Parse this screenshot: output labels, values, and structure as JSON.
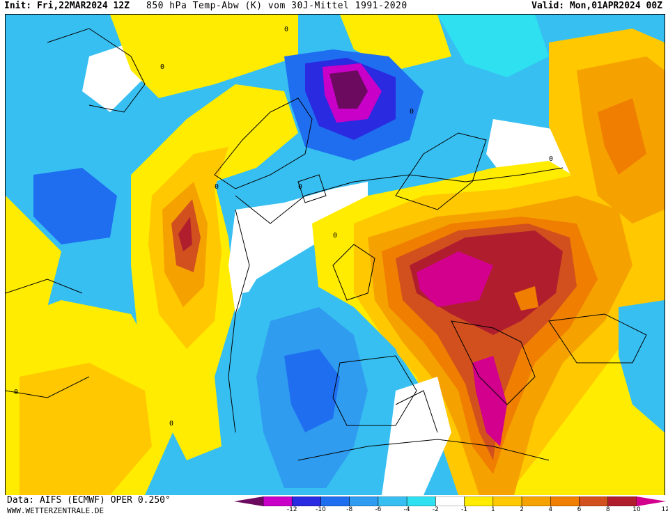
{
  "header": {
    "init": "Init: Fri,22MAR2024 12Z",
    "title": "850 hPa Temp-Abw (K) vom 30J-Mittel 1991-2020",
    "valid": "Valid: Mon,01APR2024 00Z"
  },
  "footer": {
    "source": "Data: AIFS (ECMWF) OPER 0.250°",
    "site": "WWW.WETTERZENTRALE.DE"
  },
  "legend": {
    "ticks": [
      "-12",
      "-10",
      "-8",
      "-6",
      "-4",
      "-2",
      "-1",
      "1",
      "2",
      "4",
      "6",
      "8",
      "10",
      "12"
    ],
    "colors": [
      "#6b0a5e",
      "#c800c8",
      "#2a2ae0",
      "#1f6ef0",
      "#2f9cf0",
      "#38bff2",
      "#2ee0f0",
      "#ffffff",
      "#ffec00",
      "#ffc800",
      "#f5a200",
      "#f07e00",
      "#d2501e",
      "#b01e2e",
      "#d2008c"
    ]
  },
  "map": {
    "contour_labels": [
      "0",
      "0",
      "0",
      "0",
      "0",
      "0",
      "0",
      "0",
      "0"
    ],
    "colors": {
      "deep_cold": "#6b0a5e",
      "cold_magenta": "#c800c8",
      "blue": "#2a2ae0",
      "mid_blue": "#1f6ef0",
      "light_blue": "#38bff2",
      "cyan": "#2ee0f0",
      "white": "#ffffff",
      "yellow": "#ffec00",
      "gold": "#ffc800",
      "orange": "#f5a200",
      "dark_orange": "#f07e00",
      "red_orange": "#d2501e",
      "dark_red": "#b01e2e",
      "magenta": "#d2008c"
    }
  }
}
